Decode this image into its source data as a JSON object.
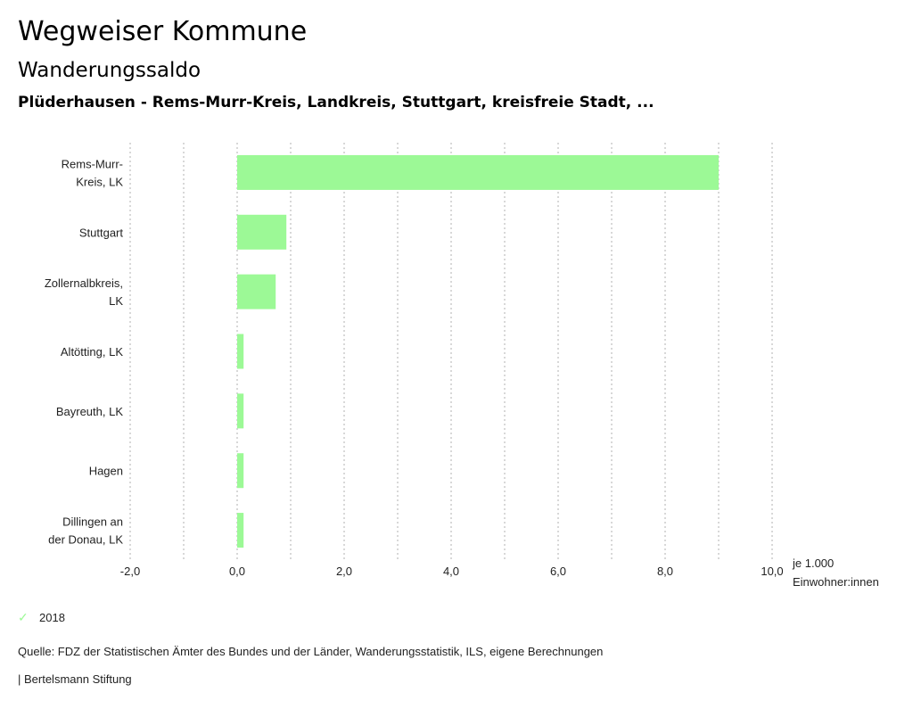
{
  "header": {
    "title": "Wegweiser Kommune",
    "subtitle": "Wanderungssaldo",
    "region": "Plüderhausen - Rems-Murr-Kreis, Landkreis, Stuttgart, kreisfreie Stadt, ..."
  },
  "chart_data": {
    "type": "bar",
    "orientation": "horizontal",
    "title": "Wanderungssaldo",
    "categories": [
      [
        "Rems-Murr-",
        "Kreis, LK"
      ],
      [
        "Stuttgart"
      ],
      [
        "Zollernalbkreis,",
        "LK"
      ],
      [
        "Altötting, LK"
      ],
      [
        "Bayreuth, LK"
      ],
      [
        "Hagen"
      ],
      [
        "Dillingen an",
        "der Donau, LK"
      ]
    ],
    "series": [
      {
        "name": "2018",
        "color": "#9cf996",
        "values": [
          9.0,
          0.92,
          0.72,
          0.12,
          0.12,
          0.12,
          0.12
        ]
      }
    ],
    "xlabel": "je 1.000 Einwohner:innen",
    "xlabel_lines": [
      "je 1.000",
      "Einwohner:innen"
    ],
    "ylabel": "",
    "xlim": [
      -2,
      10
    ],
    "xticks": [
      -2,
      0,
      2,
      4,
      6,
      8,
      10
    ],
    "xtick_labels": [
      "-2,0",
      "0,0",
      "2,0",
      "4,0",
      "6,0",
      "8,0",
      "10,0"
    ],
    "minor_gridlines": [
      -1,
      1,
      3,
      5,
      7,
      9
    ],
    "grid": true,
    "grid_color": "#b0b0b0",
    "legend_position": "bottom-left"
  },
  "legend": {
    "label": "2018",
    "icon": "check-icon",
    "color": "#9cf996"
  },
  "footer": {
    "source": "Quelle: FDZ der Statistischen Ämter des Bundes und der Länder, Wanderungsstatistik, ILS, eigene Berechnungen",
    "credit": "| Bertelsmann Stiftung"
  }
}
